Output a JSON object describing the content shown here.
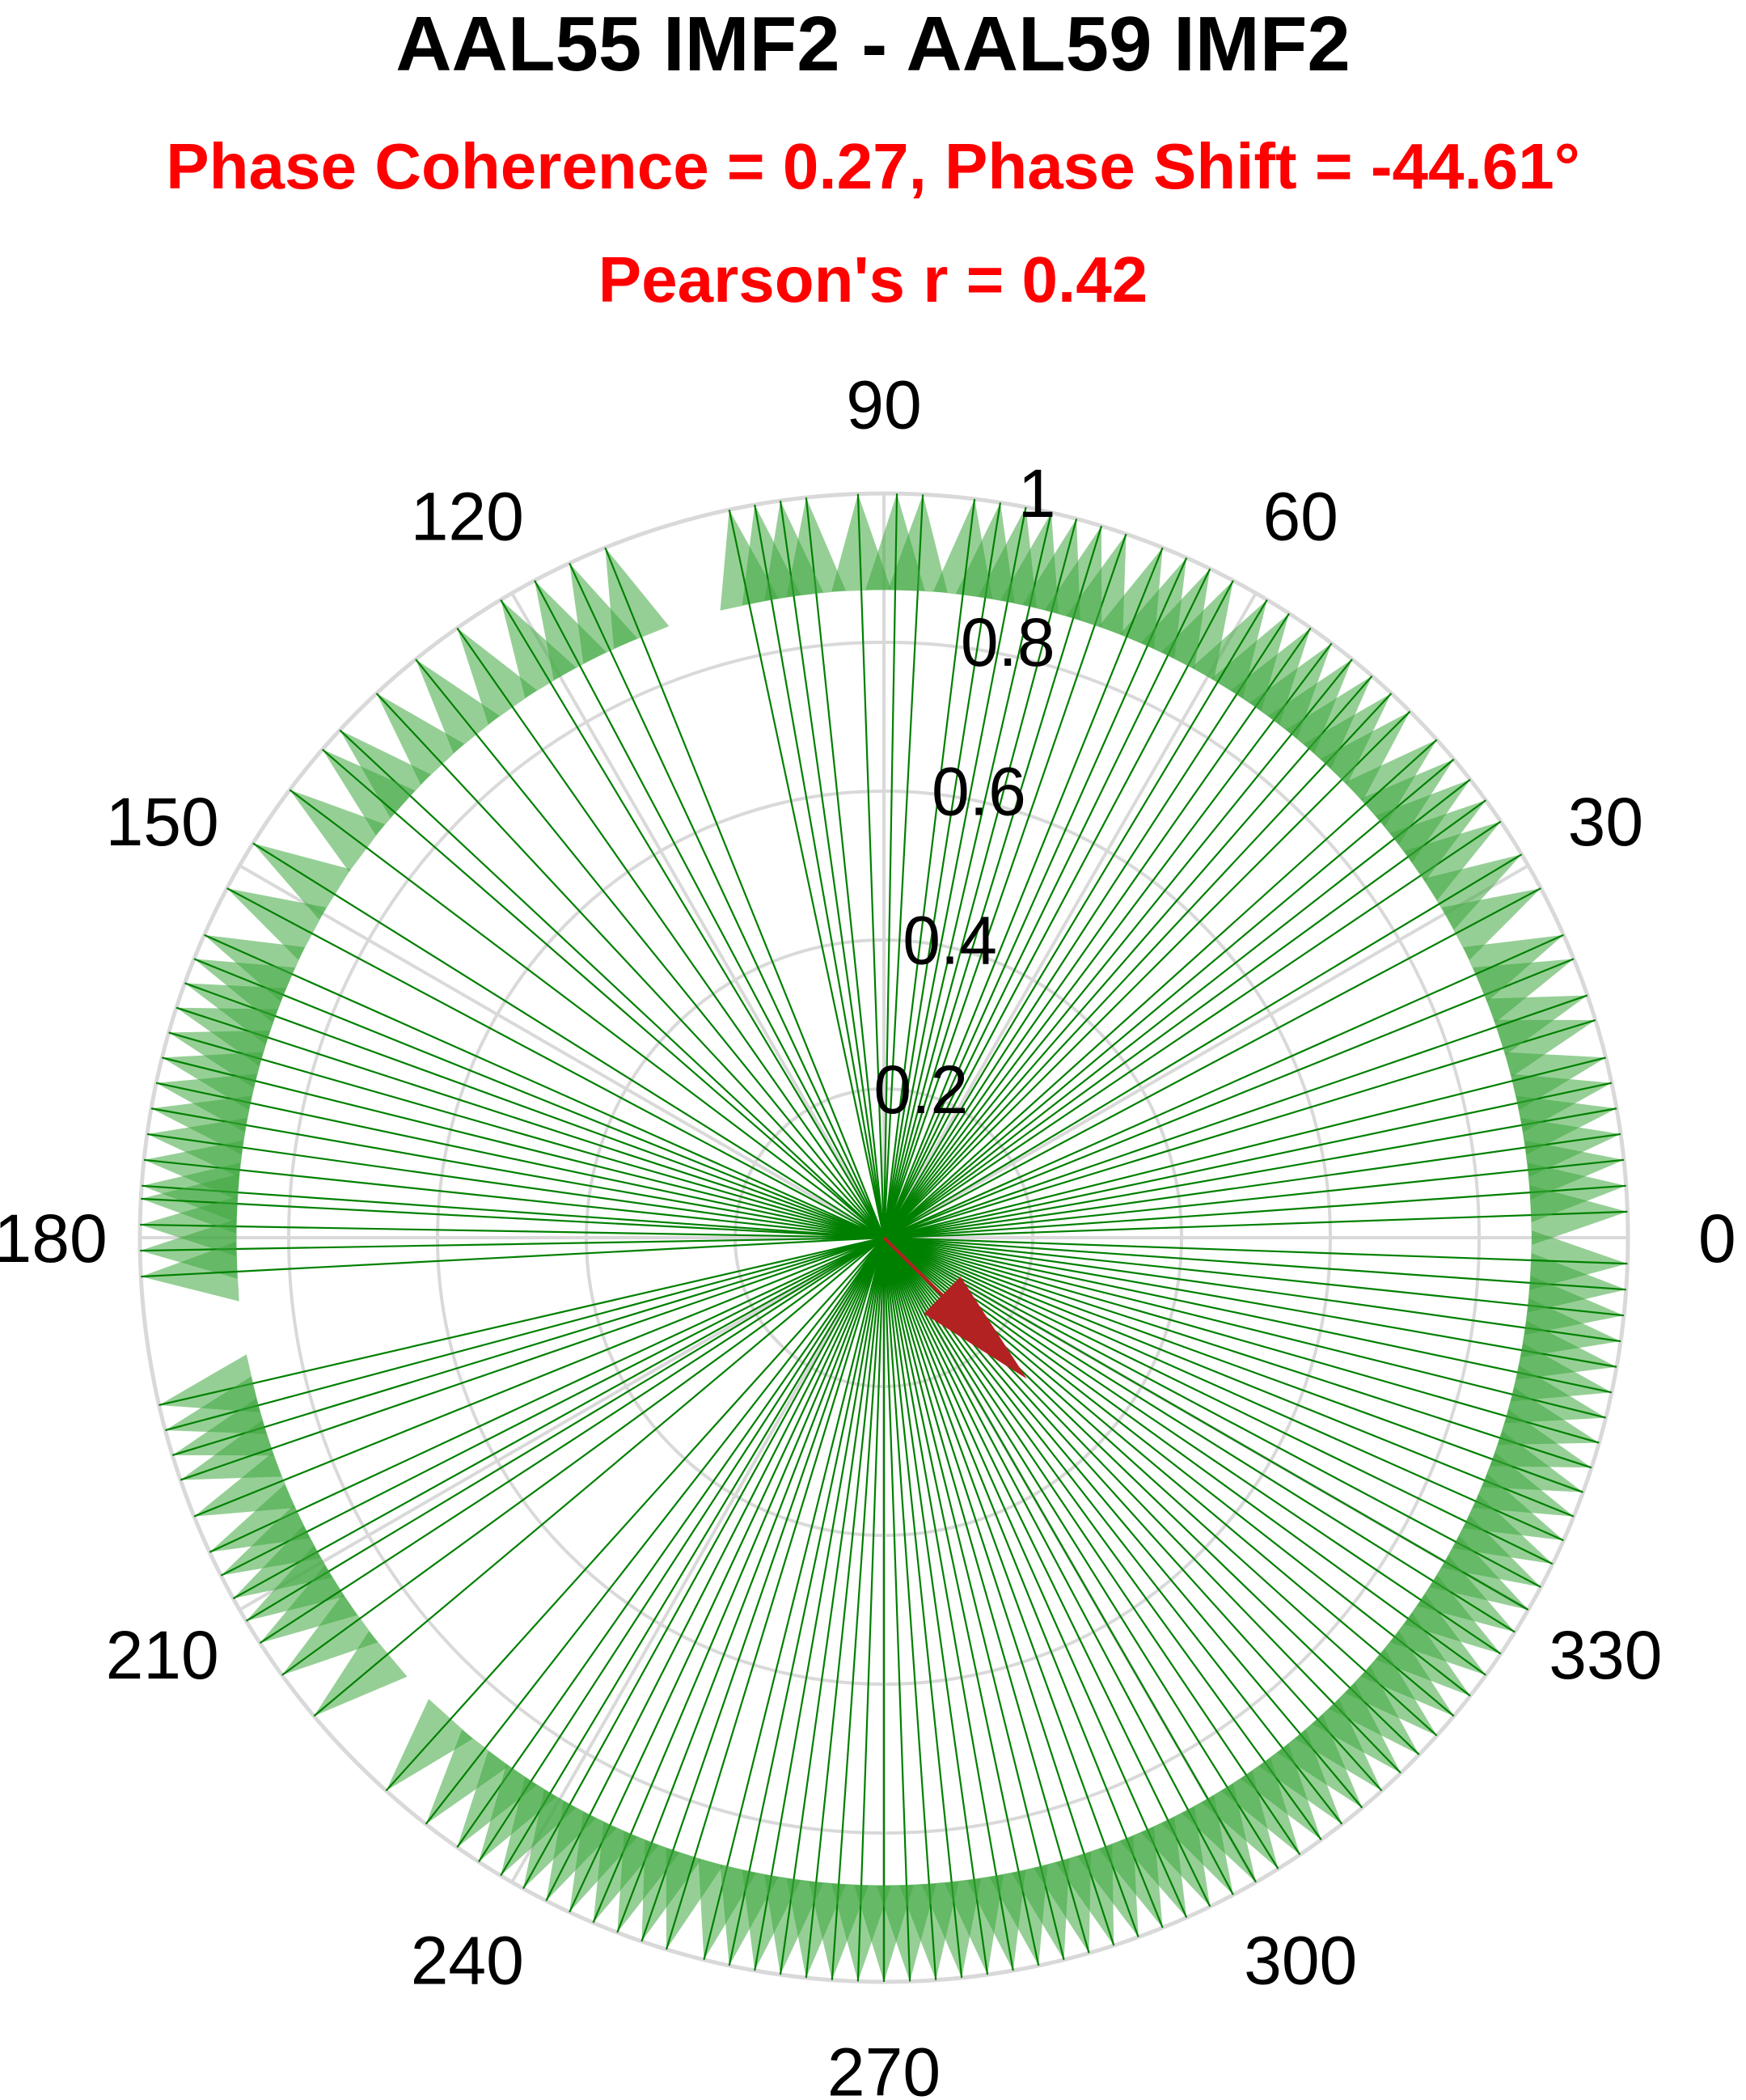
{
  "title": "AAL55 IMF2 - AAL59 IMF2",
  "subtitle_line1": "Phase Coherence = 0.27, Phase Shift = -44.61°",
  "subtitle_line2": "Pearson's r = 0.42",
  "colors": {
    "title": "#000000",
    "subtitle": "#ff0000",
    "vectors": "#008000",
    "arrowheads": "#3fa83f",
    "mean_vector": "#b22222",
    "grid": "#d9d9d9"
  },
  "chart_data": {
    "type": "polar-compass",
    "angle_unit": "degrees",
    "angle_ticks": [
      "0",
      "30",
      "60",
      "90",
      "120",
      "150",
      "180",
      "210",
      "240",
      "270",
      "300",
      "330"
    ],
    "radial_ticks": [
      "0.2",
      "0.4",
      "0.6",
      "0.8",
      "1"
    ],
    "rlim": [
      0,
      1
    ],
    "grid": true,
    "unit_vectors_deg": [
      2,
      4,
      6,
      8,
      10,
      12,
      14,
      17,
      19,
      22,
      24,
      28,
      31,
      34,
      36,
      38,
      40,
      42,
      45,
      47,
      49,
      51,
      53,
      55,
      57,
      59,
      62,
      64,
      66,
      68,
      71,
      73,
      75,
      77,
      79,
      81,
      83,
      87,
      89,
      92,
      96,
      98,
      100,
      102,
      112,
      115,
      118,
      121,
      125,
      129,
      133,
      137,
      139,
      143,
      148,
      152,
      156,
      158,
      160,
      162,
      164,
      166,
      168,
      170,
      172,
      174,
      176,
      177,
      179,
      181,
      183,
      193,
      195,
      197,
      199,
      202,
      205,
      207,
      209,
      211,
      213,
      216,
      220,
      228,
      232,
      235,
      237,
      239,
      241,
      243,
      245,
      247,
      249,
      251,
      253,
      256,
      258,
      260,
      262,
      264,
      266,
      268,
      270,
      272,
      274,
      276,
      278,
      280,
      282,
      284,
      286,
      288,
      290,
      292,
      294,
      296,
      298,
      300,
      302,
      304,
      306,
      308,
      310,
      312,
      314,
      316,
      318,
      320,
      322,
      324,
      326,
      328,
      330,
      332,
      334,
      336,
      338,
      340,
      342,
      344,
      346,
      348,
      350,
      352,
      354,
      356,
      358
    ],
    "mean_vector": {
      "angle_deg": -44.61,
      "length": 0.27
    },
    "annotations": {
      "phase_coherence": 0.27,
      "phase_shift_deg": -44.61,
      "pearson_r": 0.42
    }
  }
}
